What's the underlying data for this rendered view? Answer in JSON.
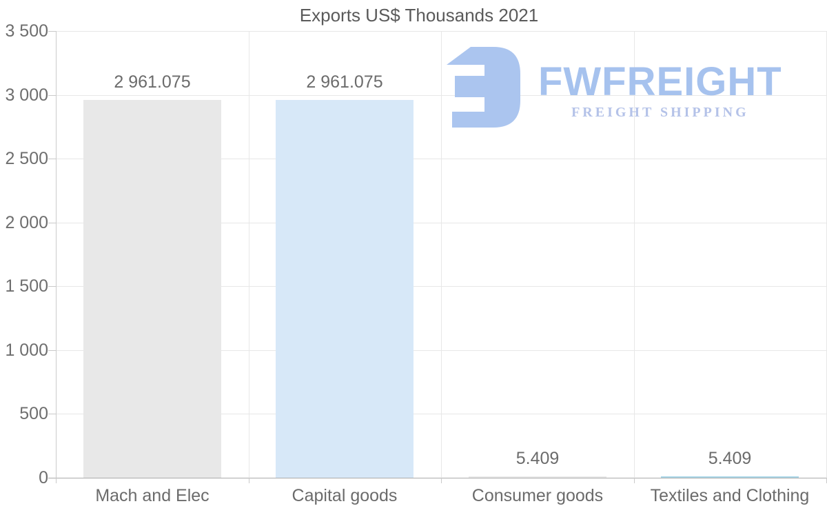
{
  "page": {
    "background": "#ffffff"
  },
  "chart_data": {
    "type": "bar",
    "title": "Exports US$ Thousands 2021",
    "categories": [
      "Mach and Elec",
      "Capital goods",
      "Consumer goods",
      "Textiles and Clothing"
    ],
    "values": [
      2961.075,
      2961.075,
      5.409,
      5.409
    ],
    "value_labels": [
      "2 961.075",
      "2 961.075",
      "5.409",
      "5.409"
    ],
    "bar_colors": [
      "#e8e8e8",
      "#d7e8f8",
      "#e9e9e9",
      "#a8d6e8"
    ],
    "ylim": [
      0,
      3500
    ],
    "ytick_values": [
      0,
      500,
      1000,
      1500,
      2000,
      2500,
      3000,
      3500
    ],
    "ytick_labels": [
      "0",
      "500",
      "1 000",
      "1 500",
      "2 000",
      "2 500",
      "3 000",
      "3 500"
    ],
    "xlabel": "",
    "ylabel": "",
    "grid": true,
    "legend": "none"
  },
  "watermark": {
    "brand": "FWFREIGHT",
    "tagline": "FREIGHT SHIPPING",
    "logo_icon": "fw-monogram",
    "logo_color": "#abc5ef"
  },
  "colors": {
    "title_text": "#5a5a5a",
    "axis_text": "#6e6e6e",
    "grid_line": "#e7e7e7",
    "axis_line": "#aaaaaa",
    "tick_line": "#c9c9c9"
  }
}
